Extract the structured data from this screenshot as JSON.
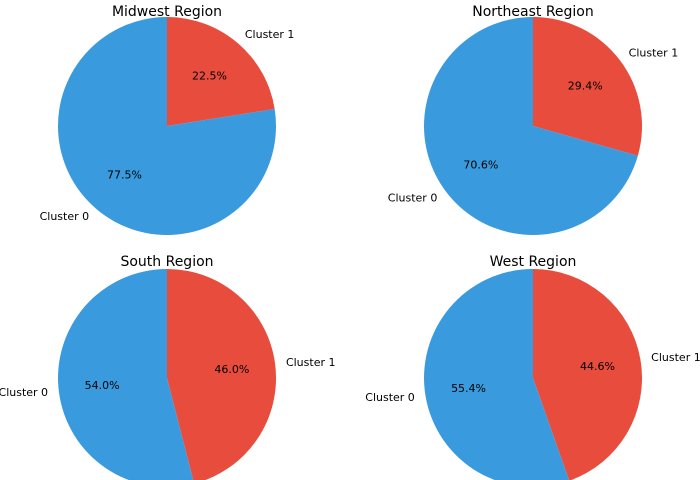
{
  "colors": {
    "cluster_0": "#3a9ade",
    "cluster_1": "#e84c3d",
    "background": "#ffffff"
  },
  "chart_data": [
    {
      "type": "pie",
      "title": "Midwest Region",
      "labels": [
        "Cluster 0",
        "Cluster 1"
      ],
      "values": [
        77.5,
        22.5
      ],
      "value_labels": [
        "77.5%",
        "22.5%"
      ]
    },
    {
      "type": "pie",
      "title": "Northeast Region",
      "labels": [
        "Cluster 0",
        "Cluster 1"
      ],
      "values": [
        70.6,
        29.4
      ],
      "value_labels": [
        "70.6%",
        "29.4%"
      ]
    },
    {
      "type": "pie",
      "title": "South Region",
      "labels": [
        "Cluster 0",
        "Cluster 1"
      ],
      "values": [
        54.0,
        46.0
      ],
      "value_labels": [
        "54.0%",
        "46.0%"
      ]
    },
    {
      "type": "pie",
      "title": "West Region",
      "labels": [
        "Cluster 0",
        "Cluster 1"
      ],
      "values": [
        55.4,
        44.6
      ],
      "value_labels": [
        "55.4%",
        "44.6%"
      ]
    }
  ]
}
